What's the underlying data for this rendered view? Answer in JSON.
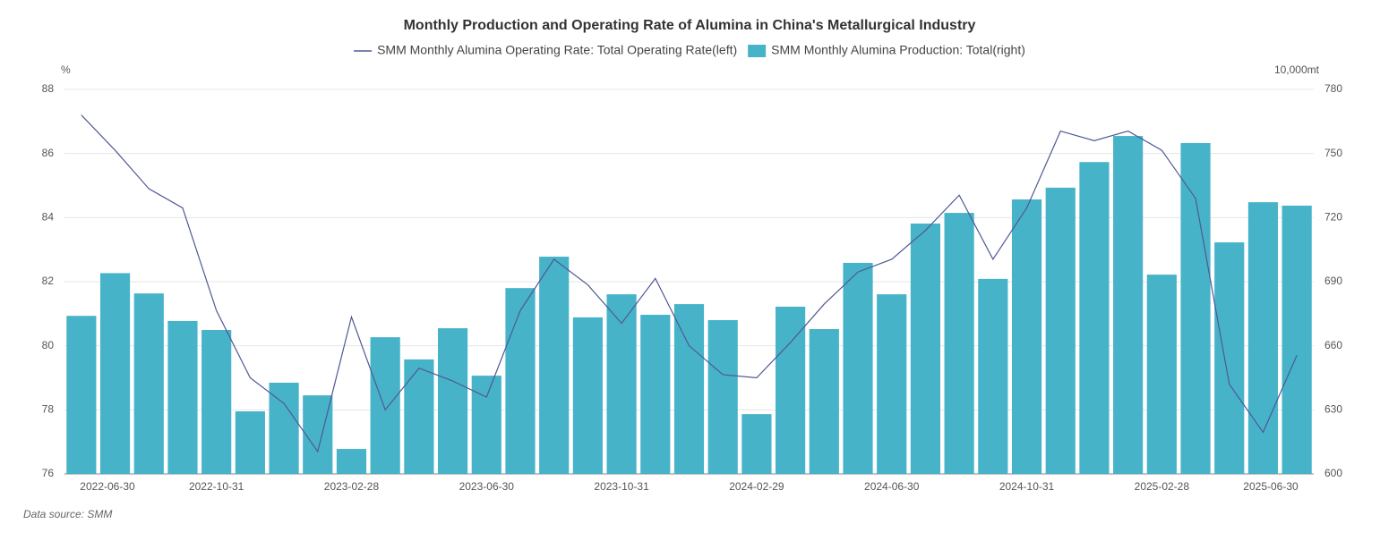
{
  "chart_data": {
    "type": "bar_line",
    "title": "Monthly Production and Operating Rate of Alumina in China's Metallurgical Industry",
    "y_label": "%",
    "y2_label": "10,000mt",
    "source": "Data source:  SMM",
    "categories": [
      "2022-06-30",
      null,
      null,
      null,
      "2022-10-31",
      null,
      null,
      null,
      "2023-02-28",
      null,
      null,
      null,
      "2023-06-30",
      null,
      null,
      null,
      "2023-10-31",
      null,
      null,
      null,
      "2024-02-29",
      null,
      null,
      null,
      "2024-06-30",
      null,
      null,
      null,
      "2024-10-31",
      null,
      null,
      null,
      "2025-02-28",
      null,
      null,
      null,
      "2025-06-30"
    ],
    "series": [
      {
        "name": "SMM Monthly Alumina Operating Rate: Total Operating Rate(left)",
        "type": "line",
        "axis": "y",
        "color": "#4f5894",
        "values": [
          87.2,
          86.1,
          84.9,
          84.3,
          81.1,
          79.0,
          78.2,
          76.7,
          80.9,
          78.0,
          79.3,
          78.9,
          78.4,
          81.1,
          82.7,
          81.9,
          80.7,
          82.1,
          80.0,
          79.1,
          79.0,
          80.1,
          81.3,
          82.3,
          82.7,
          83.6,
          84.7,
          82.7,
          84.3,
          86.7,
          86.4,
          86.7,
          86.1,
          84.6,
          78.8,
          77.3,
          79.7
        ]
      },
      {
        "name": "SMM Monthly Alumina Production: Total(right)",
        "type": "bar",
        "axis": "y2",
        "color": "#47b3c9",
        "values": [
          674.0,
          694.0,
          684.5,
          671.6,
          667.4,
          629.3,
          642.7,
          636.8,
          611.7,
          664.0,
          653.6,
          668.2,
          646.0,
          687.0,
          701.7,
          673.3,
          684.1,
          674.5,
          679.5,
          672.0,
          628.0,
          678.3,
          667.8,
          698.8,
          684.1,
          717.2,
          722.2,
          691.3,
          728.5,
          734.0,
          746.0,
          758.2,
          693.3,
          754.9,
          708.4,
          727.2,
          725.6
        ]
      }
    ],
    "ylim": [
      76,
      88
    ],
    "yticks": [
      76,
      78,
      80,
      82,
      84,
      86,
      88
    ],
    "y2lim": [
      600,
      780
    ],
    "y2ticks": [
      600,
      630,
      660,
      690,
      720,
      750,
      780
    ],
    "grid": true,
    "legend": "top"
  }
}
